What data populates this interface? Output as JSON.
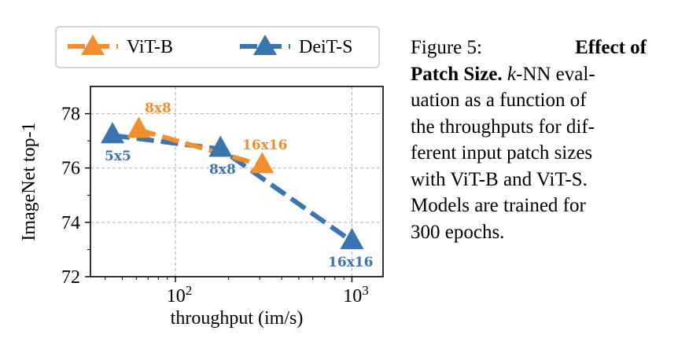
{
  "chart_data": {
    "type": "line",
    "xlabel": "throughput (im/s)",
    "ylabel": "ImageNet top-1",
    "x_scale": "log",
    "xlim": [
      33,
      1500
    ],
    "ylim": [
      72,
      79
    ],
    "yticks": [
      "72",
      "74",
      "76",
      "78"
    ],
    "xticks": [
      {
        "base": "10",
        "exp": "2",
        "value": 100
      },
      {
        "base": "10",
        "exp": "3",
        "value": 1000
      }
    ],
    "grid": true,
    "legend_position": "top",
    "series": [
      {
        "name": "ViT-B",
        "color": "#F28E2B",
        "marker": "triangle",
        "points": [
          {
            "x": 62,
            "y": 77.4,
            "label": "8x8"
          },
          {
            "x": 310,
            "y": 76.1,
            "label": "16x16"
          }
        ]
      },
      {
        "name": "DeiT-S",
        "color": "#3B75AF",
        "marker": "triangle",
        "points": [
          {
            "x": 44,
            "y": 77.2,
            "label": "5x5"
          },
          {
            "x": 180,
            "y": 76.7,
            "label": "8x8"
          },
          {
            "x": 1000,
            "y": 73.3,
            "label": "16x16"
          }
        ]
      }
    ]
  },
  "caption": {
    "figure_label": "Figure 5:",
    "title_part1": "Effect of",
    "title_part2": "Patch Size.",
    "knn_k": "k",
    "line1_rest": "-NN eval-",
    "line2": "uation as a function of",
    "line3": "the throughputs for dif-",
    "line4": "ferent input patch sizes",
    "line5": "with ViT-B and ViT-S.",
    "line6": "Models are trained for",
    "line7": "300 epochs."
  }
}
